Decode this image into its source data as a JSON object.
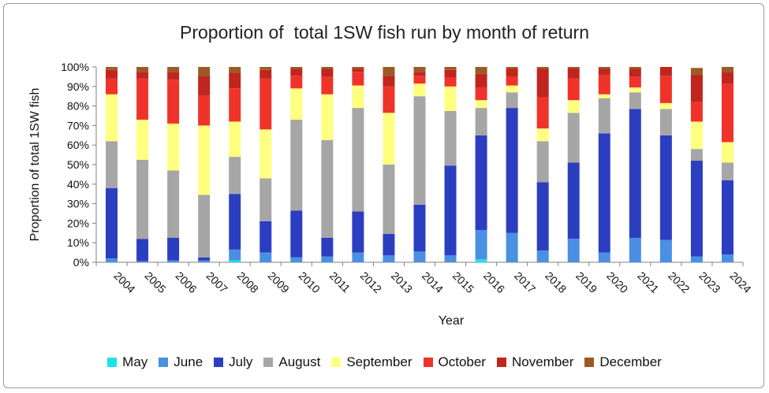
{
  "chart_data": {
    "type": "bar",
    "stacked": true,
    "title": "Proportion of  total 1SW fish run by month of return",
    "xlabel": "Year",
    "ylabel": "Proportion of total 1SW fish",
    "ylim": [
      0,
      100
    ],
    "y_ticks": [
      "0%",
      "10%",
      "20%",
      "30%",
      "40%",
      "50%",
      "60%",
      "70%",
      "80%",
      "90%",
      "100%"
    ],
    "grid": false,
    "legend_position": "bottom",
    "categories": [
      "2004",
      "2005",
      "2006",
      "2007",
      "2008",
      "2009",
      "2010",
      "2011",
      "2012",
      "2013",
      "2014",
      "2015",
      "2016",
      "2017",
      "2018",
      "2019",
      "2020",
      "2021",
      "2022",
      "2023",
      "2024"
    ],
    "series": [
      {
        "name": "May",
        "color": "#22e0e8",
        "values": [
          0,
          0,
          0,
          0,
          1,
          0,
          0,
          0,
          0,
          0,
          0,
          0,
          1.5,
          0,
          0,
          0,
          0,
          0,
          0,
          0,
          0
        ]
      },
      {
        "name": "June",
        "color": "#4a90e2",
        "values": [
          2,
          0.5,
          1,
          1,
          5.5,
          5,
          2.5,
          3,
          5,
          3.5,
          5.5,
          3.5,
          15,
          15,
          6,
          12,
          5,
          12.5,
          11.5,
          3,
          4
        ]
      },
      {
        "name": "July",
        "color": "#2c3ec0",
        "values": [
          36,
          11.5,
          11.5,
          1.5,
          28.5,
          16,
          24,
          9.5,
          21,
          11,
          24,
          46,
          48.5,
          64,
          35,
          39,
          61,
          66,
          53.5,
          49,
          38
        ]
      },
      {
        "name": "August",
        "color": "#a6a6a6",
        "values": [
          24,
          40.5,
          34.5,
          32,
          19,
          22,
          46.5,
          50,
          53,
          35.5,
          55.5,
          28,
          14,
          8,
          21,
          25.5,
          18,
          8.5,
          13.5,
          6,
          9
        ]
      },
      {
        "name": "September",
        "color": "#ffff80",
        "values": [
          24,
          20.5,
          24,
          35.5,
          18,
          25,
          16,
          23.5,
          11.5,
          26.5,
          6.5,
          12.5,
          4,
          3.5,
          6.5,
          6.5,
          2,
          2.5,
          3,
          14,
          10.5
        ]
      },
      {
        "name": "October",
        "color": "#f0332a",
        "values": [
          8,
          21,
          22.5,
          15.5,
          17,
          26,
          6.5,
          9,
          7,
          13.5,
          4,
          4.5,
          6.5,
          4.5,
          16,
          11,
          10,
          5.5,
          14,
          10,
          30
        ]
      },
      {
        "name": "November",
        "color": "#c0251e",
        "values": [
          4.5,
          3.5,
          4,
          10,
          8,
          4.5,
          3.5,
          4,
          1.5,
          5.5,
          2,
          4,
          7,
          4,
          14.5,
          5.5,
          3,
          4,
          4.5,
          14,
          6
        ]
      },
      {
        "name": "December",
        "color": "#9c5a24",
        "values": [
          1.5,
          2.5,
          2.5,
          4.5,
          3,
          1.5,
          1,
          1,
          1,
          4.5,
          2.5,
          1.5,
          3.5,
          1,
          1,
          0.5,
          1,
          1,
          0,
          3.5,
          2.5
        ]
      }
    ]
  }
}
